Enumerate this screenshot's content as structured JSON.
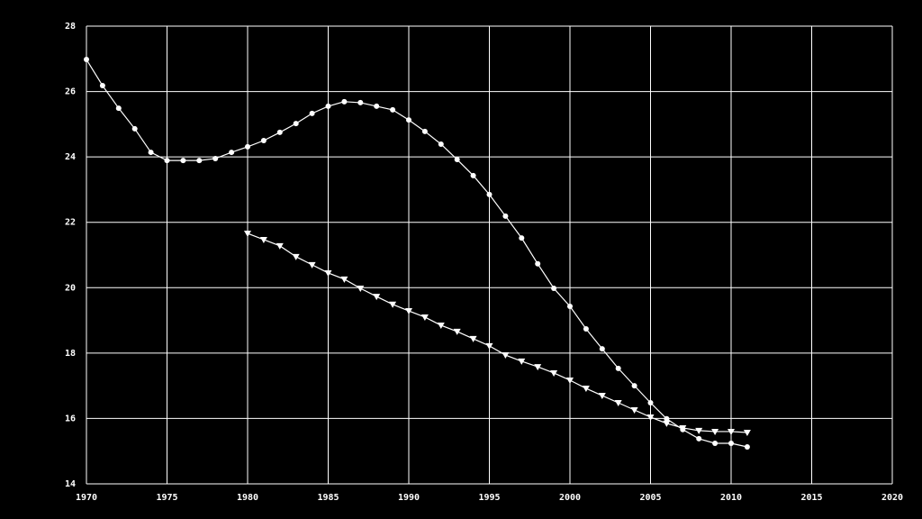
{
  "chart_data": {
    "type": "line",
    "x": [
      1970,
      1971,
      1972,
      1973,
      1974,
      1975,
      1976,
      1977,
      1978,
      1979,
      1980,
      1981,
      1982,
      1983,
      1984,
      1985,
      1986,
      1987,
      1988,
      1989,
      1990,
      1991,
      1992,
      1993,
      1994,
      1995,
      1996,
      1997,
      1998,
      1999,
      2000,
      2001,
      2002,
      2003,
      2004,
      2005,
      2006,
      2007,
      2008,
      2009,
      2010,
      2011
    ],
    "series": [
      {
        "color": "#ffffff",
        "marker": "circle",
        "values": [
          26.98,
          26.18,
          25.49,
          24.86,
          24.14,
          23.89,
          23.89,
          23.89,
          23.95,
          24.14,
          24.31,
          24.5,
          24.75,
          25.02,
          25.33,
          25.55,
          25.69,
          25.66,
          25.55,
          25.44,
          25.13,
          24.78,
          24.39,
          23.92,
          23.43,
          22.85,
          22.19,
          21.52,
          20.73,
          19.98,
          19.43,
          18.74,
          18.13,
          17.53,
          17.0,
          16.48,
          15.99,
          15.66,
          15.38,
          15.24,
          15.24,
          15.13
        ]
      },
      {
        "color": "#ffffff",
        "marker": "triangle-down",
        "values": [
          null,
          null,
          null,
          null,
          null,
          null,
          null,
          null,
          null,
          null,
          21.66,
          21.47,
          21.28,
          20.95,
          20.7,
          20.45,
          20.26,
          19.98,
          19.73,
          19.49,
          19.29,
          19.1,
          18.85,
          18.66,
          18.44,
          18.22,
          17.94,
          17.75,
          17.58,
          17.39,
          17.17,
          16.92,
          16.7,
          16.48,
          16.26,
          16.04,
          15.85,
          15.71,
          15.63,
          15.6,
          15.6,
          15.57
        ]
      }
    ],
    "xlim": [
      1970,
      2020
    ],
    "xticks": [
      1970,
      1975,
      1980,
      1985,
      1990,
      1995,
      2000,
      2005,
      2010,
      2015,
      2020
    ],
    "ylim": [
      14,
      28
    ],
    "yticks": [
      14,
      16,
      18,
      20,
      22,
      24,
      26,
      28
    ],
    "grid": true,
    "background": "#000000",
    "grid_color": "#ffffff"
  }
}
